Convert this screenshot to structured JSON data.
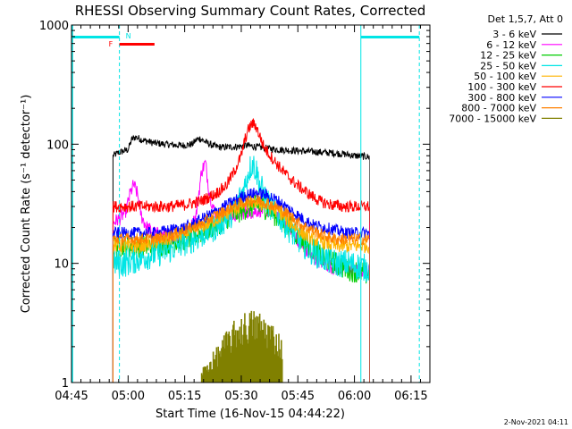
{
  "chart_data": {
    "type": "line",
    "title": "RHESSI Observing Summary Count Rates, Corrected",
    "xlabel": "Start Time (16-Nov-15 04:44:22)",
    "ylabel": "Corrected Count Rate (s⁻¹ detector⁻¹)",
    "yscale": "log",
    "xlim_minutes": [
      0,
      95
    ],
    "ylim": [
      1,
      1000
    ],
    "x_ticks": [
      {
        "label": "04:45",
        "min": 0
      },
      {
        "label": "05:00",
        "min": 15
      },
      {
        "label": "05:15",
        "min": 30
      },
      {
        "label": "05:30",
        "min": 45
      },
      {
        "label": "05:45",
        "min": 60
      },
      {
        "label": "06:00",
        "min": 75
      },
      {
        "label": "06:15",
        "min": 90
      }
    ],
    "y_ticks": [
      {
        "label": "1",
        "v": 1
      },
      {
        "label": "10",
        "v": 10
      },
      {
        "label": "100",
        "v": 100
      },
      {
        "label": "1000",
        "v": 1000
      }
    ],
    "legend_header": "Det 1,5,7, Att 0",
    "series": [
      {
        "name": "3 - 6 keV",
        "color": "#000000",
        "points": [
          [
            11,
            80
          ],
          [
            12.5,
            85
          ],
          [
            14,
            88
          ],
          [
            15,
            90
          ],
          [
            16,
            110
          ],
          [
            17,
            115
          ],
          [
            19,
            108
          ],
          [
            22,
            102
          ],
          [
            25,
            100
          ],
          [
            28,
            98
          ],
          [
            30,
            98
          ],
          [
            32,
            100
          ],
          [
            33,
            108
          ],
          [
            34,
            112
          ],
          [
            36,
            102
          ],
          [
            38,
            96
          ],
          [
            40,
            94
          ],
          [
            43,
            95
          ],
          [
            45,
            96
          ],
          [
            46,
            98
          ],
          [
            48,
            96
          ],
          [
            52,
            92
          ],
          [
            55,
            90
          ],
          [
            60,
            88
          ],
          [
            65,
            86
          ],
          [
            70,
            84
          ],
          [
            73,
            82
          ],
          [
            75,
            80
          ],
          [
            77.5,
            79
          ],
          [
            79,
            78
          ]
        ]
      },
      {
        "name": "6 - 12 keV",
        "color": "#ff00ff",
        "points": [
          [
            11,
            22
          ],
          [
            13,
            24
          ],
          [
            14.5,
            28
          ],
          [
            15.5,
            38
          ],
          [
            16.5,
            46
          ],
          [
            17.5,
            38
          ],
          [
            18.5,
            25
          ],
          [
            20,
            20
          ],
          [
            22,
            18
          ],
          [
            25,
            17
          ],
          [
            28,
            17
          ],
          [
            31,
            18
          ],
          [
            33,
            25
          ],
          [
            34.5,
            60
          ],
          [
            35.5,
            70
          ],
          [
            36.5,
            40
          ],
          [
            38,
            26
          ],
          [
            41,
            24
          ],
          [
            44,
            26
          ],
          [
            46,
            27
          ],
          [
            48,
            27
          ],
          [
            50,
            28
          ],
          [
            52,
            28
          ],
          [
            55,
            26
          ],
          [
            58,
            20
          ],
          [
            61,
            14
          ],
          [
            64,
            11
          ],
          [
            67,
            10
          ],
          [
            70,
            9
          ],
          [
            73,
            9
          ],
          [
            76,
            8.5
          ],
          [
            79,
            8.5
          ]
        ]
      },
      {
        "name": "12 - 25 keV",
        "color": "#00cc00",
        "points": [
          [
            11,
            14
          ],
          [
            14,
            14
          ],
          [
            18,
            14
          ],
          [
            22,
            14
          ],
          [
            26,
            15
          ],
          [
            30,
            16
          ],
          [
            34,
            18
          ],
          [
            38,
            21
          ],
          [
            42,
            25
          ],
          [
            46,
            29
          ],
          [
            48,
            30
          ],
          [
            50,
            30
          ],
          [
            52,
            29
          ],
          [
            55,
            24
          ],
          [
            58,
            20
          ],
          [
            61,
            16
          ],
          [
            64,
            13
          ],
          [
            67,
            11
          ],
          [
            70,
            10
          ],
          [
            73,
            9
          ],
          [
            76,
            8.5
          ],
          [
            79,
            8
          ]
        ]
      },
      {
        "name": "25 - 50 keV",
        "color": "#00e5e5",
        "points": [
          [
            11,
            10
          ],
          [
            14,
            10
          ],
          [
            18,
            11
          ],
          [
            22,
            12
          ],
          [
            26,
            13
          ],
          [
            30,
            15
          ],
          [
            34,
            17
          ],
          [
            38,
            20
          ],
          [
            42,
            25
          ],
          [
            44,
            32
          ],
          [
            46,
            45
          ],
          [
            47,
            60
          ],
          [
            48,
            70
          ],
          [
            49,
            60
          ],
          [
            50,
            45
          ],
          [
            52,
            32
          ],
          [
            55,
            25
          ],
          [
            58,
            19
          ],
          [
            61,
            15
          ],
          [
            64,
            12.5
          ],
          [
            67,
            11
          ],
          [
            70,
            10
          ],
          [
            73,
            10
          ],
          [
            76,
            9.5
          ],
          [
            79,
            9
          ]
        ]
      },
      {
        "name": "50 - 100 keV",
        "color": "#ffb400",
        "points": [
          [
            11,
            14
          ],
          [
            14,
            14
          ],
          [
            18,
            14
          ],
          [
            22,
            15
          ],
          [
            26,
            16
          ],
          [
            30,
            18
          ],
          [
            34,
            20
          ],
          [
            38,
            23
          ],
          [
            42,
            27
          ],
          [
            45,
            30
          ],
          [
            47,
            32
          ],
          [
            48,
            33
          ],
          [
            50,
            32
          ],
          [
            52,
            30
          ],
          [
            55,
            27
          ],
          [
            58,
            22
          ],
          [
            61,
            18
          ],
          [
            64,
            16
          ],
          [
            67,
            15
          ],
          [
            70,
            14
          ],
          [
            73,
            14
          ],
          [
            76,
            14
          ],
          [
            79,
            14
          ]
        ]
      },
      {
        "name": "100 - 300 keV",
        "color": "#ff0000",
        "points": [
          [
            11,
            30
          ],
          [
            14,
            30
          ],
          [
            18,
            30
          ],
          [
            22,
            30
          ],
          [
            26,
            30
          ],
          [
            30,
            31
          ],
          [
            34,
            33
          ],
          [
            38,
            38
          ],
          [
            41,
            45
          ],
          [
            43,
            58
          ],
          [
            45,
            80
          ],
          [
            46,
            110
          ],
          [
            47,
            135
          ],
          [
            48,
            150
          ],
          [
            49,
            140
          ],
          [
            50,
            115
          ],
          [
            51,
            95
          ],
          [
            53,
            78
          ],
          [
            55,
            65
          ],
          [
            57,
            55
          ],
          [
            60,
            45
          ],
          [
            63,
            38
          ],
          [
            66,
            33
          ],
          [
            69,
            31
          ],
          [
            72,
            30
          ],
          [
            75,
            30
          ],
          [
            79,
            30
          ]
        ]
      },
      {
        "name": "300 - 800 keV",
        "color": "#0000ff",
        "points": [
          [
            11,
            18
          ],
          [
            14,
            18
          ],
          [
            18,
            18
          ],
          [
            22,
            18
          ],
          [
            26,
            19
          ],
          [
            30,
            20
          ],
          [
            34,
            23
          ],
          [
            38,
            27
          ],
          [
            42,
            32
          ],
          [
            45,
            36
          ],
          [
            47,
            38
          ],
          [
            49,
            39
          ],
          [
            51,
            38
          ],
          [
            53,
            36
          ],
          [
            55,
            33
          ],
          [
            58,
            28
          ],
          [
            61,
            24
          ],
          [
            64,
            21
          ],
          [
            67,
            20
          ],
          [
            70,
            19
          ],
          [
            73,
            18
          ],
          [
            76,
            18
          ],
          [
            79,
            18
          ]
        ]
      },
      {
        "name": "800 - 7000 keV",
        "color": "#ff8000",
        "points": [
          [
            11,
            16
          ],
          [
            14,
            16
          ],
          [
            18,
            16
          ],
          [
            22,
            16
          ],
          [
            26,
            17
          ],
          [
            30,
            19
          ],
          [
            34,
            21
          ],
          [
            38,
            25
          ],
          [
            42,
            29
          ],
          [
            45,
            32
          ],
          [
            47,
            33
          ],
          [
            49,
            34
          ],
          [
            51,
            33
          ],
          [
            53,
            31
          ],
          [
            55,
            29
          ],
          [
            58,
            25
          ],
          [
            61,
            21
          ],
          [
            64,
            19
          ],
          [
            67,
            17
          ],
          [
            70,
            16
          ],
          [
            73,
            16
          ],
          [
            76,
            16
          ],
          [
            79,
            16
          ]
        ]
      },
      {
        "name": "7000 - 15000 keV",
        "color": "#808000",
        "points": []
      }
    ],
    "annotations": {
      "left_bar": {
        "label": "",
        "from_min": 0,
        "to_min": 12.7,
        "color": "#00e5e5"
      },
      "night_marker": {
        "label": "N",
        "at_min": 12.7,
        "color": "#00e5e5"
      },
      "right_bar": {
        "from_min": 76.7,
        "to_min": 92.2,
        "color": "#00e5e5"
      },
      "flare_bar": {
        "label": "F",
        "from_min": 12.7,
        "to_min": 22,
        "color": "#ff0000"
      },
      "attenuator_state_lines_min": [
        12.7,
        76.7,
        92.2
      ]
    }
  },
  "footer": {
    "timestamp": "2-Nov-2021 04:11"
  }
}
